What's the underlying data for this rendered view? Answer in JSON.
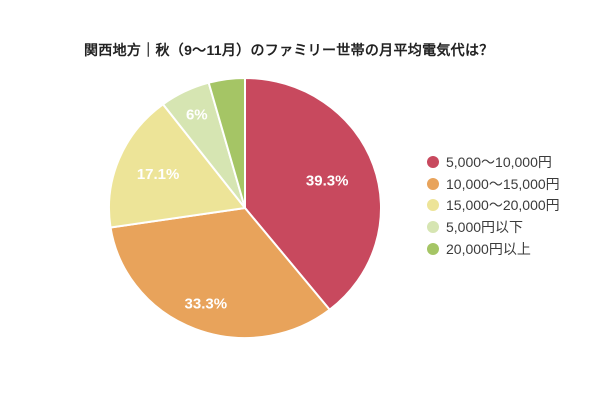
{
  "title": "関西地方｜秋（9〜11月）のファミリー世帯の月平均電気代は？",
  "chart_data": {
    "type": "pie",
    "title": "関西地方｜秋（9〜11月）のファミリー世帯の月平均電気代は？",
    "direction": "clockwise",
    "start_angle_deg": 0,
    "legend_position": "right",
    "background_color": "#ffffff",
    "label_color": "#ffffff",
    "slices": [
      {
        "label": "5,000〜10,000円",
        "value": 39.3,
        "display_label": "39.3%",
        "color": "#c8495e"
      },
      {
        "label": "10,000〜15,000円",
        "value": 33.3,
        "display_label": "33.3%",
        "color": "#e8a35b"
      },
      {
        "label": "15,000〜20,000円",
        "value": 17.1,
        "display_label": "17.1%",
        "color": "#ede498"
      },
      {
        "label": "5,000円以下",
        "value": 6.0,
        "display_label": "6%",
        "color": "#d6e5b2"
      },
      {
        "label": "20,000円以上",
        "value": 4.3,
        "display_label": "",
        "color": "#a5c565"
      }
    ]
  }
}
